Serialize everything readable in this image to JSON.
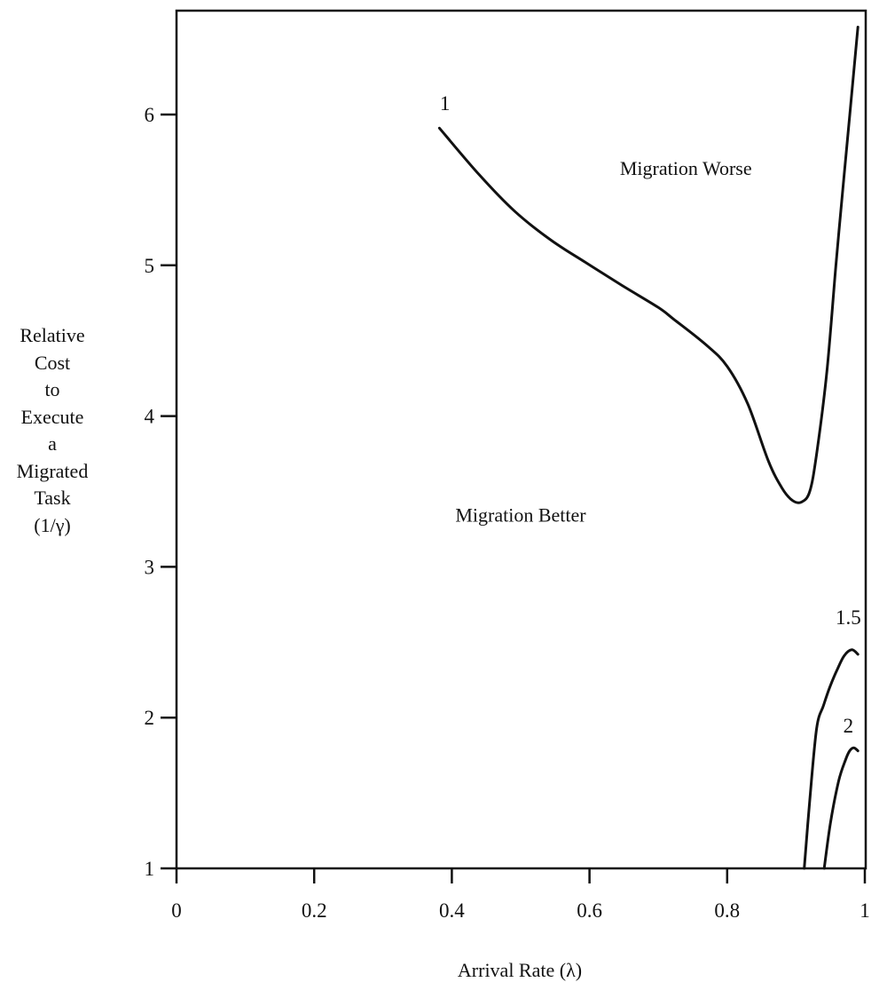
{
  "chart_data": {
    "type": "line",
    "title": "",
    "xlabel": "Arrival Rate (λ)",
    "ylabel": "Relative Cost to Execute a Migrated Task (1/γ)",
    "ylabel_lines": [
      "Relative",
      "Cost",
      "to",
      "Execute",
      "a",
      "Migrated",
      "Task",
      "(1/γ)"
    ],
    "xlim": [
      0,
      1
    ],
    "ylim": [
      1,
      6.6
    ],
    "x_ticks": [
      0,
      0.2,
      0.4,
      0.6,
      0.8,
      1
    ],
    "x_tick_labels": [
      "0",
      "0.2",
      "0.4",
      "0.6",
      "0.8",
      "1"
    ],
    "y_ticks": [
      1,
      2,
      3,
      4,
      5,
      6
    ],
    "y_tick_labels": [
      "1",
      "2",
      "3",
      "4",
      "5",
      "6"
    ],
    "grid": false,
    "legend": "none (curves labeled inline)",
    "annotations": [
      {
        "text": "Migration Worse",
        "x": 0.74,
        "y": 5.6
      },
      {
        "text": "Migration Better",
        "x": 0.5,
        "y": 3.3
      }
    ],
    "series": [
      {
        "name": "1",
        "label_pos": {
          "x": 0.39,
          "y": 6.03
        },
        "x": [
          0.382,
          0.44,
          0.491,
          0.543,
          0.594,
          0.646,
          0.7,
          0.723,
          0.77,
          0.8,
          0.83,
          0.86,
          0.88,
          0.895,
          0.908,
          0.92,
          0.93,
          0.945,
          0.958,
          0.97,
          0.99
        ],
        "y": [
          5.91,
          5.6,
          5.36,
          5.17,
          5.02,
          4.87,
          4.72,
          4.64,
          4.47,
          4.33,
          4.08,
          3.7,
          3.52,
          3.44,
          3.43,
          3.5,
          3.75,
          4.3,
          5.0,
          5.6,
          6.58
        ]
      },
      {
        "name": "1.5",
        "label_pos": {
          "x": 0.976,
          "y": 2.62
        },
        "x": [
          0.912,
          0.92,
          0.93,
          0.94,
          0.949,
          0.96,
          0.97,
          0.981,
          0.99
        ],
        "y": [
          1.0,
          1.45,
          1.93,
          2.08,
          2.2,
          2.32,
          2.41,
          2.45,
          2.42
        ]
      },
      {
        "name": "2",
        "label_pos": {
          "x": 0.976,
          "y": 1.9
        },
        "x": [
          0.941,
          0.95,
          0.962,
          0.972,
          0.978,
          0.984,
          0.99
        ],
        "y": [
          1.0,
          1.3,
          1.58,
          1.72,
          1.78,
          1.8,
          1.78
        ]
      }
    ]
  }
}
